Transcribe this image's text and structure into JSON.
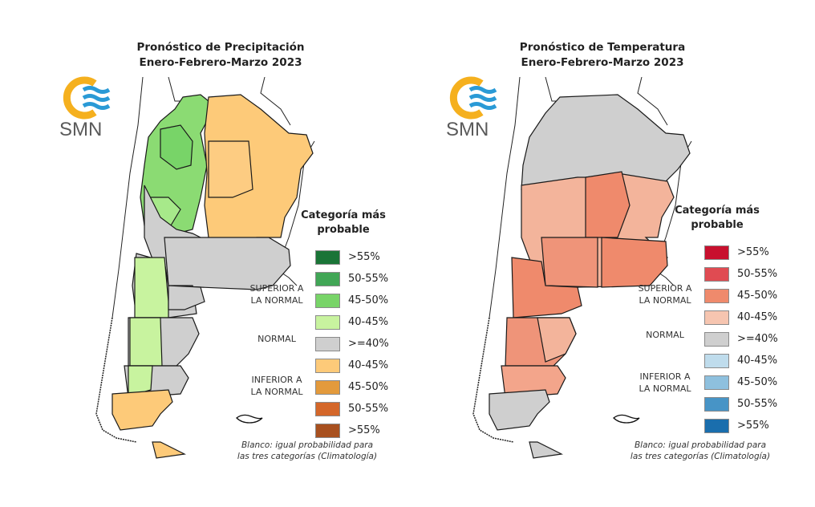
{
  "maps": [
    {
      "id": "precip",
      "title_line1": "Pronóstico de Precipitación",
      "title_line2": "Enero-Febrero-Marzo 2023",
      "logo_text": "SMN",
      "legend": {
        "title_line1": "Categoría más",
        "title_line2": "probable",
        "groups": [
          {
            "label_line1": "SUPERIOR A",
            "label_line2": "LA NORMAL"
          },
          {
            "label_line1": "NORMAL",
            "label_line2": ""
          },
          {
            "label_line1": "INFERIOR A",
            "label_line2": "LA NORMAL"
          }
        ],
        "items": [
          {
            "label": ">55%",
            "color": "#1a7437",
            "category": "superior"
          },
          {
            "label": "50-55%",
            "color": "#41a656",
            "category": "superior"
          },
          {
            "label": "45-50%",
            "color": "#78d468",
            "category": "superior"
          },
          {
            "label": "40-45%",
            "color": "#c8f39f",
            "category": "superior"
          },
          {
            "label": ">=40%",
            "color": "#cfcfcf",
            "category": "normal"
          },
          {
            "label": "40-45%",
            "color": "#fdca79",
            "category": "inferior"
          },
          {
            "label": "45-50%",
            "color": "#e39a3c",
            "category": "inferior"
          },
          {
            "label": "50-55%",
            "color": "#d4672a",
            "category": "inferior"
          },
          {
            "label": ">55%",
            "color": "#a8501f",
            "category": "inferior"
          }
        ]
      },
      "note_line1": "Blanco: igual probabilidad para",
      "note_line2": "las tres categorías (Climatología)"
    },
    {
      "id": "temp",
      "title_line1": "Pronóstico de Temperatura",
      "title_line2": "Enero-Febrero-Marzo 2023",
      "logo_text": "SMN",
      "legend": {
        "title_line1": "Categoría más",
        "title_line2": "probable",
        "groups": [
          {
            "label_line1": "SUPERIOR A",
            "label_line2": "LA NORMAL"
          },
          {
            "label_line1": "NORMAL",
            "label_line2": ""
          },
          {
            "label_line1": "INFERIOR A",
            "label_line2": "LA NORMAL"
          }
        ],
        "items": [
          {
            "label": ">55%",
            "color": "#c8102e",
            "category": "superior"
          },
          {
            "label": "50-55%",
            "color": "#e04b52",
            "category": "superior"
          },
          {
            "label": "45-50%",
            "color": "#ef8a6c",
            "category": "superior"
          },
          {
            "label": "40-45%",
            "color": "#f6c5b0",
            "category": "superior"
          },
          {
            "label": ">=40%",
            "color": "#cfcfcf",
            "category": "normal"
          },
          {
            "label": "40-45%",
            "color": "#bfdcec",
            "category": "inferior"
          },
          {
            "label": "45-50%",
            "color": "#8ec0de",
            "category": "inferior"
          },
          {
            "label": "50-55%",
            "color": "#4794c6",
            "category": "inferior"
          },
          {
            "label": ">55%",
            "color": "#1a6ead",
            "category": "inferior"
          }
        ]
      },
      "note_line1": "Blanco: igual probabilidad para",
      "note_line2": "las tres categorías (Climatología)"
    }
  ],
  "colors": {
    "logo_sun": "#f5b01e",
    "logo_waves": "#2a9ad6",
    "normal_gray": "#cfcfcf",
    "border": "#1a1a1a"
  }
}
